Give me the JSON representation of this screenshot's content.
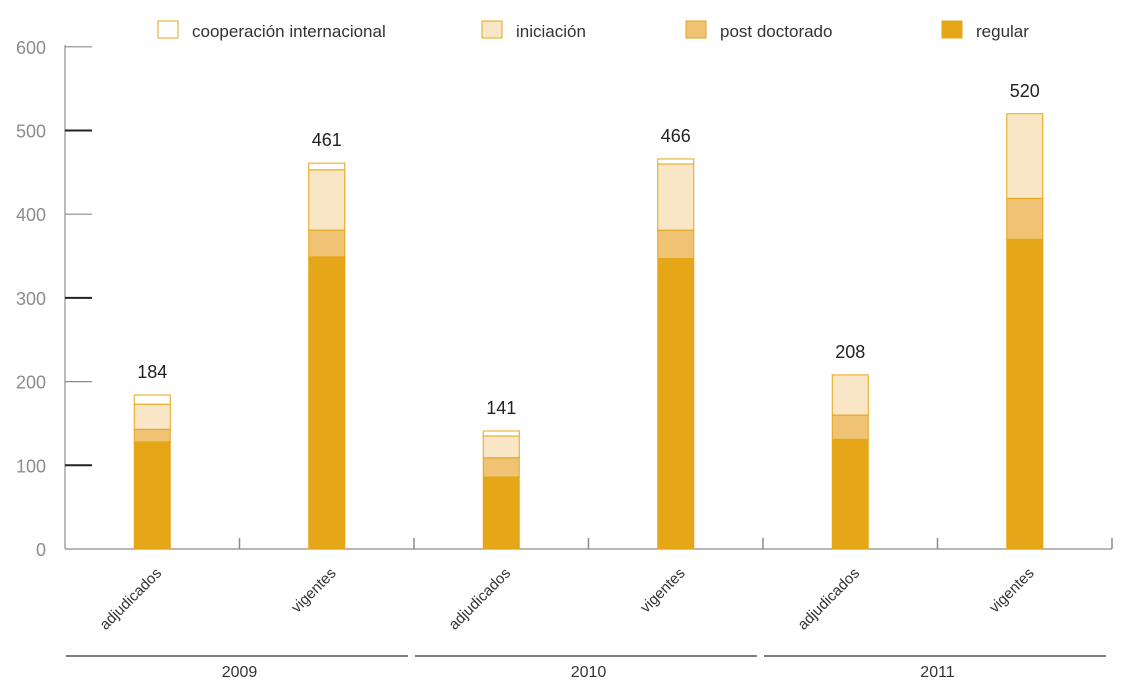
{
  "chart_data": {
    "type": "bar",
    "stacked": true,
    "categories": [
      "adjudicados",
      "vigentes",
      "adjudicados",
      "vigentes",
      "adjudicados",
      "vigentes"
    ],
    "groups": [
      {
        "label": "2009",
        "categories": [
          0,
          1
        ]
      },
      {
        "label": "2010",
        "categories": [
          2,
          3
        ]
      },
      {
        "label": "2011",
        "categories": [
          4,
          5
        ]
      }
    ],
    "series": [
      {
        "name": "regular",
        "color": "#E5A617",
        "values": [
          128,
          349,
          86,
          347,
          131,
          370
        ]
      },
      {
        "name": "post doctorado",
        "color": "#F0C273",
        "values": [
          15,
          32,
          23,
          34,
          29,
          49
        ]
      },
      {
        "name": "iniciación",
        "color": "#F9E6C6",
        "values": [
          30,
          72,
          26,
          79,
          48,
          101
        ]
      },
      {
        "name": "cooperación internacional",
        "color": "#FFFFFF",
        "values": [
          11,
          8,
          6,
          6,
          0,
          0
        ]
      }
    ],
    "totals": [
      "184",
      "461",
      "141",
      "466",
      "208",
      "520"
    ],
    "yticks": [
      "0",
      "100",
      "200",
      "300",
      "400",
      "500",
      "600"
    ],
    "ylim": [
      0,
      600
    ],
    "legend_order": [
      "cooperación internacional",
      "iniciación",
      "post doctorado",
      "regular"
    ],
    "legend_position": "top",
    "grid": false,
    "xlabel": "",
    "ylabel": "",
    "title": ""
  },
  "colors": {
    "accent": "#E5A617",
    "stroke": "#E5A617",
    "axis": "#8c8c8c"
  }
}
